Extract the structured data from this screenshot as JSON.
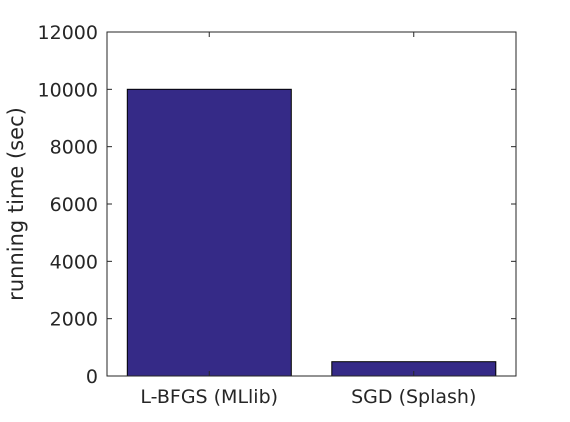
{
  "chart_data": {
    "type": "bar",
    "title": "",
    "xlabel": "",
    "ylabel": "running time (sec)",
    "categories": [
      "L-BFGS (MLlib)",
      "SGD (Splash)"
    ],
    "values": [
      10000,
      500
    ],
    "ylim": [
      0,
      12000
    ],
    "yticks": [
      0,
      2000,
      4000,
      6000,
      8000,
      10000,
      12000
    ],
    "ytick_labels": [
      "0",
      "2000",
      "4000",
      "6000",
      "8000",
      "10000",
      "12000"
    ],
    "grid": false,
    "bar_color": "#352a87"
  }
}
